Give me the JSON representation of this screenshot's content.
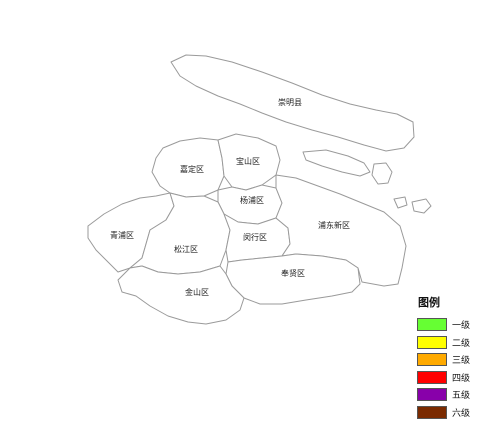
{
  "districts": [
    {
      "key": "chongming",
      "name": "崇明县"
    },
    {
      "key": "baoshan",
      "name": "宝山区"
    },
    {
      "key": "jiading",
      "name": "嘉定区"
    },
    {
      "key": "yangpu",
      "name": "杨浦区"
    },
    {
      "key": "qingpu",
      "name": "青浦区"
    },
    {
      "key": "songjiang",
      "name": "松江区"
    },
    {
      "key": "minhang",
      "name": "闵行区"
    },
    {
      "key": "pudong",
      "name": "浦东新区"
    },
    {
      "key": "fengxian",
      "name": "奉贤区"
    },
    {
      "key": "jinshan",
      "name": "金山区"
    }
  ],
  "legend": {
    "title": "图例",
    "items": [
      {
        "label": "一级",
        "color": "#66ff33"
      },
      {
        "label": "二级",
        "color": "#ffff00"
      },
      {
        "label": "三级",
        "color": "#ffaa00"
      },
      {
        "label": "四级",
        "color": "#ff0000"
      },
      {
        "label": "五级",
        "color": "#8800aa"
      },
      {
        "label": "六级",
        "color": "#7a2a00"
      }
    ]
  }
}
